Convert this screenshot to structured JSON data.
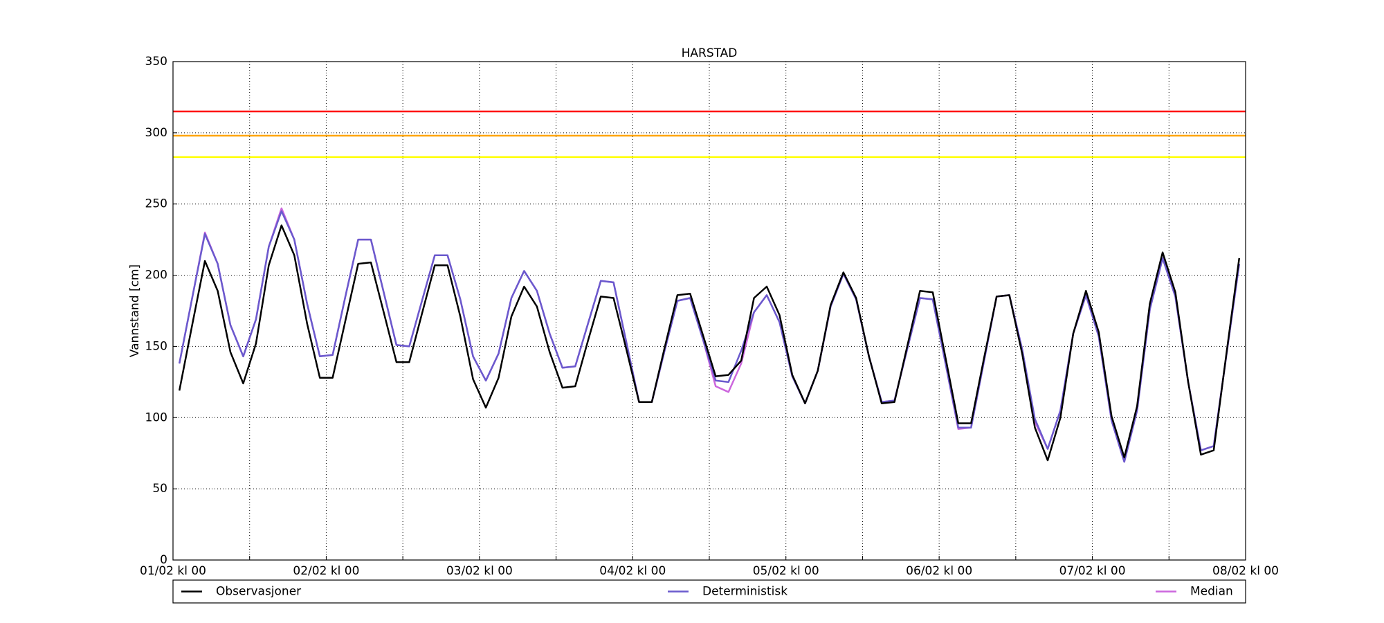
{
  "chart_data": {
    "type": "line",
    "title": "HARSTAD",
    "ylabel": "Vannstand [cm]",
    "xlim": [
      0,
      168
    ],
    "ylim": [
      0,
      350
    ],
    "yticks": [
      0,
      50,
      100,
      150,
      200,
      250,
      300,
      350
    ],
    "xticks": [
      {
        "value": 0,
        "label": "01/02 kl 00"
      },
      {
        "value": 24,
        "label": "02/02 kl 00"
      },
      {
        "value": 48,
        "label": "03/02 kl 00"
      },
      {
        "value": 72,
        "label": "04/02 kl 00"
      },
      {
        "value": 96,
        "label": "05/02 kl 00"
      },
      {
        "value": 120,
        "label": "06/02 kl 00"
      },
      {
        "value": 144,
        "label": "07/02 kl 00"
      },
      {
        "value": 168,
        "label": "08/02 kl 00"
      }
    ],
    "xminor_ticks": [
      12,
      36,
      60,
      84,
      108,
      132,
      156
    ],
    "grid": true,
    "hlines": [
      {
        "value": 315,
        "color": "#ff0000"
      },
      {
        "value": 298,
        "color": "#ffa500"
      },
      {
        "value": 283,
        "color": "#ffff00"
      }
    ],
    "x": [
      1,
      3,
      5,
      7,
      9,
      11,
      13,
      15,
      17,
      19,
      21,
      23,
      25,
      27,
      29,
      31,
      33,
      35,
      37,
      39,
      41,
      43,
      45,
      47,
      49,
      51,
      53,
      55,
      57,
      59,
      61,
      63,
      65,
      67,
      69,
      71,
      73,
      75,
      77,
      79,
      81,
      83,
      85,
      87,
      89,
      91,
      93,
      95,
      97,
      99,
      101,
      103,
      105,
      107,
      109,
      111,
      113,
      115,
      117,
      119,
      121,
      123,
      125,
      127,
      129,
      131,
      133,
      135,
      137,
      139,
      141,
      143,
      145,
      147,
      149,
      151,
      153,
      155,
      157,
      159,
      161,
      163,
      165,
      167
    ],
    "series": [
      {
        "name": "Observasjoner",
        "color": "#000000",
        "values": [
          119,
          165,
          210,
          189,
          146,
          124,
          152,
          207,
          235,
          214,
          166,
          128,
          128,
          168,
          208,
          209,
          174,
          139,
          139,
          173,
          207,
          207,
          171,
          127,
          107,
          128,
          171,
          192,
          178,
          146,
          121,
          122,
          154,
          185,
          184,
          148,
          111,
          111,
          149,
          186,
          187,
          158,
          129,
          130,
          140,
          184,
          192,
          172,
          130,
          110,
          133,
          179,
          202,
          184,
          143,
          110,
          111,
          150,
          189,
          188,
          142,
          96,
          96,
          141,
          185,
          186,
          145,
          93,
          70,
          100,
          159,
          189,
          160,
          101,
          72,
          108,
          180,
          216,
          188,
          125,
          74,
          77,
          145,
          212
        ]
      },
      {
        "name": "Deterministisk",
        "color": "#6a5acd",
        "values": [
          138,
          184,
          229,
          208,
          165,
          143,
          169,
          220,
          245,
          225,
          180,
          143,
          144,
          185,
          225,
          225,
          188,
          151,
          150,
          182,
          214,
          214,
          183,
          143,
          126,
          145,
          184,
          203,
          189,
          159,
          135,
          136,
          166,
          196,
          195,
          153,
          111,
          111,
          147,
          182,
          184,
          155,
          126,
          125,
          147,
          174,
          186,
          167,
          129,
          110,
          133,
          178,
          201,
          183,
          143,
          111,
          112,
          148,
          184,
          183,
          138,
          93,
          93,
          139,
          185,
          186,
          148,
          99,
          78,
          105,
          159,
          186,
          157,
          98,
          69,
          105,
          176,
          212,
          185,
          125,
          77,
          80,
          144,
          208
        ]
      },
      {
        "name": "Median",
        "color": "#cc66dd",
        "values": [
          138,
          184,
          230,
          208,
          165,
          143,
          169,
          220,
          247,
          225,
          180,
          143,
          144,
          185,
          225,
          225,
          188,
          151,
          150,
          182,
          214,
          214,
          183,
          143,
          126,
          145,
          184,
          203,
          189,
          159,
          135,
          136,
          166,
          196,
          195,
          153,
          111,
          111,
          147,
          182,
          184,
          155,
          122,
          118,
          138,
          174,
          186,
          167,
          129,
          110,
          133,
          178,
          201,
          183,
          143,
          111,
          112,
          148,
          184,
          183,
          138,
          92,
          93,
          139,
          185,
          186,
          148,
          97,
          78,
          105,
          159,
          186,
          157,
          98,
          69,
          105,
          176,
          212,
          185,
          125,
          77,
          80,
          144,
          208
        ]
      }
    ]
  }
}
